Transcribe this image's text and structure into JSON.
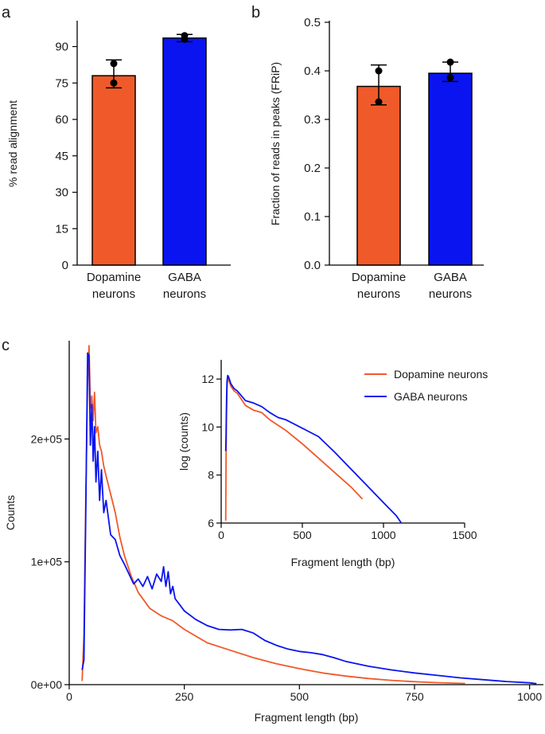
{
  "colors": {
    "dopamine": "#f05a2a",
    "gaba": "#0a14f0",
    "axis": "#000000"
  },
  "panels": {
    "a": "a",
    "b": "b",
    "c": "c"
  },
  "chart_data": [
    {
      "id": "a",
      "type": "bar",
      "ylabel": "% read alignment",
      "xlabel": "",
      "ylim": [
        0,
        100
      ],
      "yticks": [
        0,
        15,
        30,
        45,
        60,
        75,
        90
      ],
      "categories": [
        [
          "Dopamine",
          "neurons"
        ],
        [
          "GABA",
          "neurons"
        ]
      ],
      "values": [
        78,
        93.5
      ],
      "err_low": [
        73,
        92
      ],
      "err_high": [
        84.5,
        95
      ],
      "points": [
        [
          83,
          75
        ],
        [
          94.5,
          93
        ]
      ],
      "series_colors": [
        "dopamine",
        "gaba"
      ]
    },
    {
      "id": "b",
      "type": "bar",
      "ylabel": "Fraction of reads in peaks (FRiP)",
      "xlabel": "",
      "ylim": [
        0,
        0.5
      ],
      "yticks": [
        "0.0",
        "0.1",
        "0.2",
        "0.3",
        "0.4",
        "0.5"
      ],
      "categories": [
        [
          "Dopamine",
          "neurons"
        ],
        [
          "GABA",
          "neurons"
        ]
      ],
      "values": [
        0.368,
        0.395
      ],
      "err_low": [
        0.33,
        0.378
      ],
      "err_high": [
        0.412,
        0.418
      ],
      "points": [
        [
          0.4,
          0.336
        ],
        [
          0.418,
          0.386
        ]
      ],
      "series_colors": [
        "dopamine",
        "gaba"
      ]
    },
    {
      "id": "c",
      "type": "line",
      "xlabel": "Fragment length (bp)",
      "ylabel": "Counts",
      "xlim": [
        0,
        1030
      ],
      "ylim": [
        0,
        280000
      ],
      "xticks": [
        0,
        250,
        500,
        750,
        1000
      ],
      "yticks": [
        [
          0,
          "0e+00"
        ],
        [
          100000,
          "1e+05"
        ],
        [
          200000,
          "2e+05"
        ]
      ],
      "series": [
        {
          "name": "Dopamine neurons",
          "color": "dopamine",
          "x": [
            28,
            32,
            36,
            40,
            43,
            46,
            49,
            52,
            55,
            58,
            62,
            66,
            70,
            75,
            80,
            90,
            100,
            110,
            120,
            135,
            150,
            175,
            200,
            225,
            250,
            300,
            350,
            400,
            450,
            500,
            550,
            600,
            650,
            700,
            750,
            800,
            860
          ],
          "y": [
            3000,
            40000,
            150000,
            245000,
            276000,
            225000,
            235000,
            215000,
            238000,
            205000,
            210000,
            195000,
            190000,
            178000,
            170000,
            155000,
            140000,
            120000,
            105000,
            88000,
            75000,
            62000,
            56000,
            52000,
            45000,
            34000,
            28000,
            22000,
            17000,
            13000,
            9500,
            7000,
            5000,
            3500,
            2400,
            1600,
            1000
          ]
        },
        {
          "name": "GABA neurons",
          "color": "gaba",
          "x": [
            28,
            32,
            36,
            40,
            43,
            46,
            49,
            52,
            55,
            58,
            62,
            66,
            70,
            75,
            80,
            90,
            100,
            110,
            120,
            130,
            140,
            150,
            160,
            170,
            180,
            190,
            200,
            205,
            210,
            215,
            220,
            225,
            230,
            240,
            250,
            275,
            300,
            325,
            350,
            375,
            400,
            425,
            450,
            475,
            500,
            525,
            550,
            575,
            600,
            650,
            700,
            750,
            800,
            850,
            900,
            950,
            1000,
            1015
          ],
          "y": [
            12000,
            20000,
            140000,
            270000,
            268000,
            195000,
            228000,
            182000,
            210000,
            165000,
            190000,
            150000,
            175000,
            140000,
            150000,
            122000,
            118000,
            105000,
            98000,
            90000,
            82000,
            86000,
            80000,
            88000,
            78000,
            90000,
            84000,
            96000,
            80000,
            92000,
            74000,
            80000,
            70000,
            65000,
            60000,
            53000,
            48000,
            45000,
            44500,
            45000,
            42000,
            36000,
            32000,
            29000,
            27000,
            26000,
            24500,
            22000,
            19000,
            15000,
            12000,
            9500,
            7500,
            5500,
            4000,
            2500,
            1500,
            800
          ]
        }
      ],
      "legend": "inset-top-right"
    },
    {
      "id": "c-inset",
      "type": "line",
      "xlabel": "Fragment length (bp)",
      "ylabel": "log (counts)",
      "xlim": [
        0,
        1500
      ],
      "ylim": [
        6,
        12.8
      ],
      "xticks": [
        0,
        500,
        1000,
        1500
      ],
      "yticks": [
        6,
        8,
        10,
        12
      ],
      "series": [
        {
          "name": "Dopamine neurons",
          "color": "dopamine",
          "x": [
            28,
            30,
            33,
            36,
            40,
            45,
            50,
            60,
            80,
            100,
            150,
            200,
            250,
            300,
            400,
            500,
            600,
            700,
            800,
            870
          ],
          "y": [
            6.1,
            8.5,
            10.5,
            11.6,
            12.05,
            12.0,
            11.9,
            11.7,
            11.5,
            11.4,
            10.9,
            10.7,
            10.6,
            10.3,
            9.85,
            9.3,
            8.7,
            8.1,
            7.5,
            7.0
          ]
        },
        {
          "name": "GABA neurons",
          "color": "gaba",
          "x": [
            28,
            30,
            33,
            36,
            40,
            45,
            50,
            60,
            80,
            100,
            150,
            200,
            250,
            300,
            350,
            400,
            500,
            600,
            700,
            800,
            900,
            1000,
            1080,
            1110
          ],
          "y": [
            9.0,
            9.6,
            11.0,
            11.9,
            12.15,
            12.1,
            12.0,
            11.8,
            11.6,
            11.5,
            11.1,
            11.0,
            10.85,
            10.6,
            10.4,
            10.3,
            9.95,
            9.6,
            8.95,
            8.25,
            7.55,
            6.85,
            6.3,
            6.0
          ]
        }
      ]
    }
  ]
}
